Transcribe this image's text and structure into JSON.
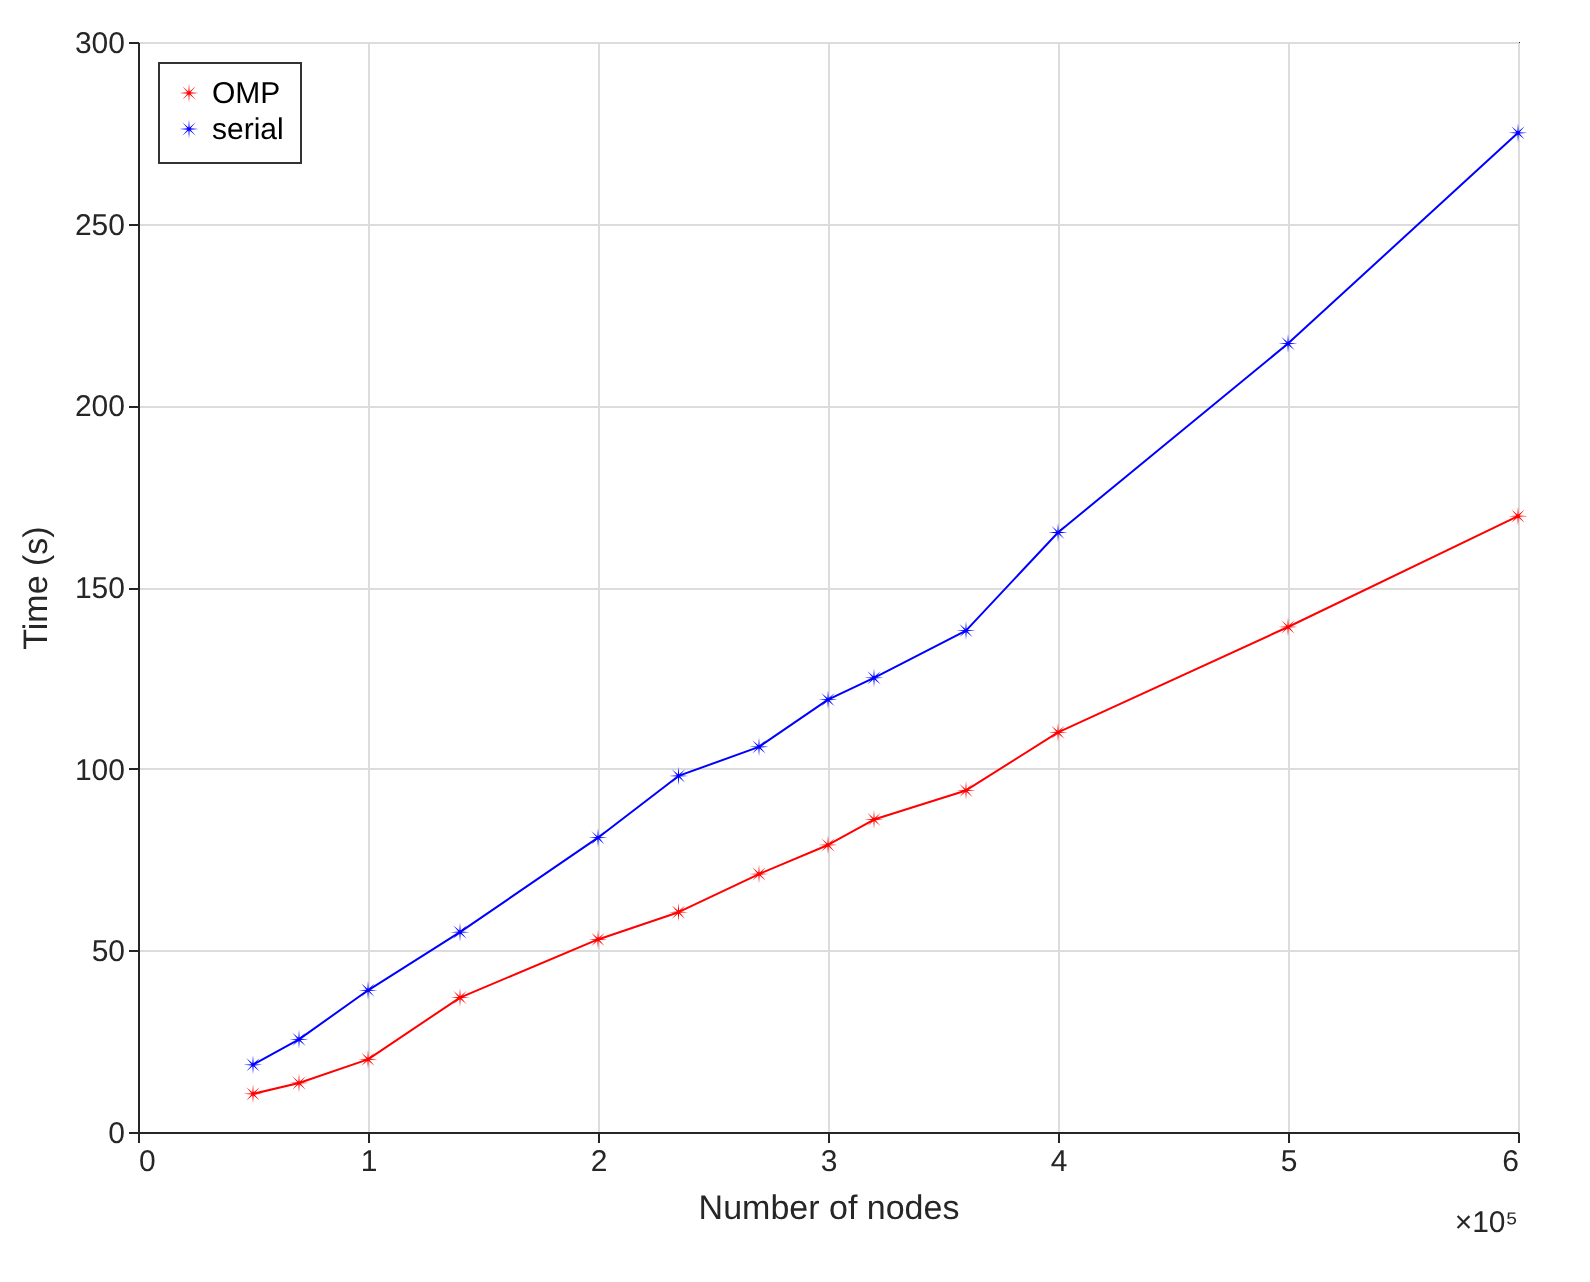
{
  "chart_data": {
    "type": "line",
    "xlabel": "Number of nodes",
    "ylabel": "Time (s)",
    "x": [
      0.5,
      0.7,
      1,
      1.4,
      2,
      2.35,
      2.7,
      3,
      3.2,
      3.6,
      4,
      5,
      6
    ],
    "series": [
      {
        "name": "OMP",
        "color": "#ff0000",
        "values": [
          10.5,
          13.5,
          20,
          37,
          53,
          60.5,
          71,
          79,
          86,
          94,
          110,
          139,
          169.5
        ]
      },
      {
        "name": "serial",
        "color": "#0000ff",
        "values": [
          18.5,
          25.5,
          39,
          55,
          81,
          98,
          106,
          119,
          125,
          138,
          165,
          217,
          275
        ]
      }
    ],
    "xlim": [
      0,
      6
    ],
    "xticks": [
      0,
      1,
      2,
      3,
      4,
      5,
      6
    ],
    "ylim": [
      0,
      300
    ],
    "yticks": [
      0,
      50,
      100,
      150,
      200,
      250,
      300
    ],
    "annotations": [
      "×10⁵"
    ],
    "grid": true,
    "legend": "top left",
    "marker": "star",
    "line_style": "solid"
  }
}
